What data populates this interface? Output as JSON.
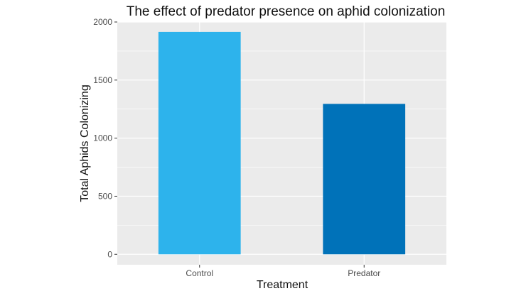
{
  "chart_data": {
    "type": "bar",
    "title": "The effect of predator presence on aphid colonization",
    "xlabel": "Treatment",
    "ylabel": "Total Aphids Colonizing",
    "categories": [
      "Control",
      "Predator"
    ],
    "values": [
      1915,
      1295
    ],
    "bar_colors": [
      "#2db3ec",
      "#0072b9"
    ],
    "ylim": [
      -90,
      2000
    ],
    "yticks": [
      0,
      500,
      1000,
      1500,
      2000
    ],
    "ytick_labels": [
      "0",
      "500",
      "1000",
      "1500",
      "2000"
    ],
    "grid": true,
    "legend": "none",
    "panel_background": "#ebebeb",
    "grid_color": "#ffffff"
  }
}
